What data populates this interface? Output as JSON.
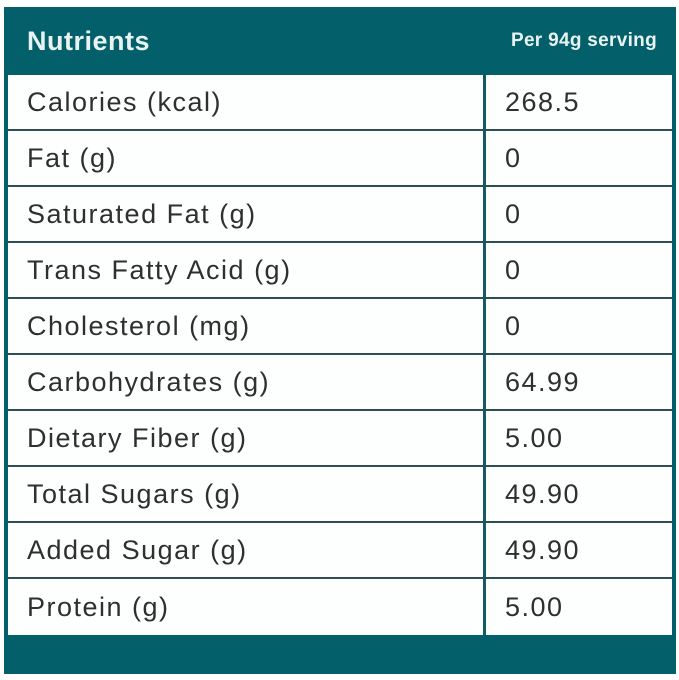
{
  "table": {
    "header": {
      "title": "Nutrients",
      "serving": "Per 94g serving"
    },
    "rows": [
      {
        "label": "Calories (kcal)",
        "value": "268.5"
      },
      {
        "label": "Fat (g)",
        "value": "0"
      },
      {
        "label": "Saturated Fat (g)",
        "value": "0"
      },
      {
        "label": "Trans Fatty Acid (g)",
        "value": "0"
      },
      {
        "label": "Cholesterol (mg)",
        "value": "0"
      },
      {
        "label": "Carbohydrates (g)",
        "value": "64.99"
      },
      {
        "label": "Dietary Fiber (g)",
        "value": "5.00"
      },
      {
        "label": "Total Sugars (g)",
        "value": "49.90"
      },
      {
        "label": "Added Sugar (g)",
        "value": "49.90"
      },
      {
        "label": "Protein (g)",
        "value": "5.00"
      }
    ],
    "colors": {
      "teal": "#035F69",
      "row_separator": "#2D4E53",
      "column_divider": "#135A62",
      "header_text": "#E8F3F2",
      "row_text": "#2F2F2F",
      "row_background": "#FDFEFE",
      "page_background": "#FFFFFF"
    }
  }
}
